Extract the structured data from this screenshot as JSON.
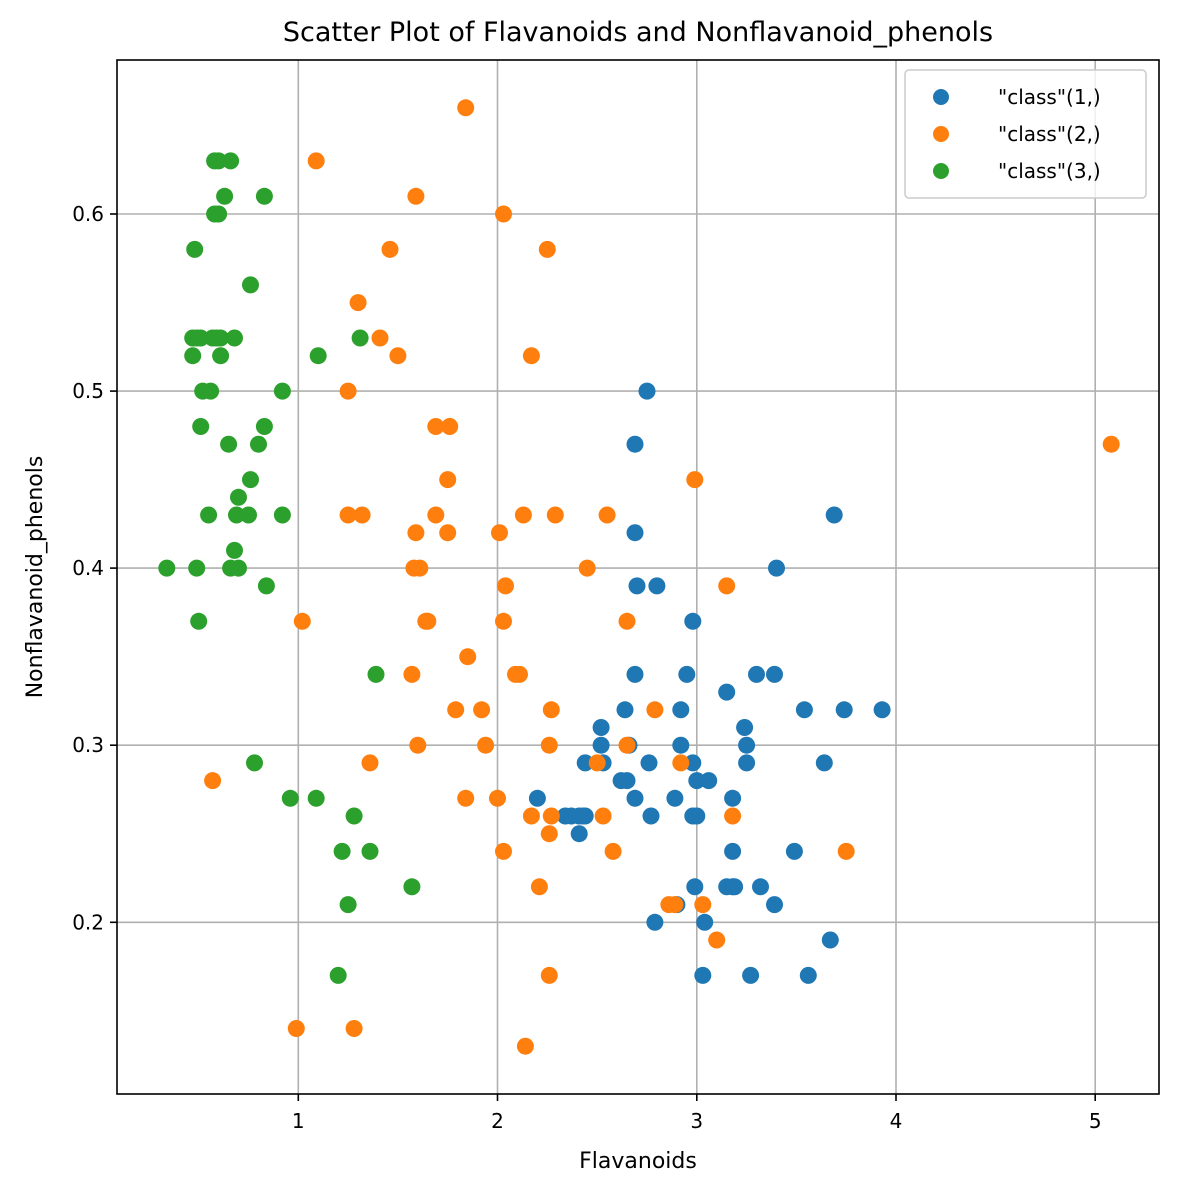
{
  "chart_data": {
    "type": "scatter",
    "title": "Scatter Plot of Flavanoids and Nonflavanoid_phenols",
    "xlabel": "Flavanoids",
    "ylabel": "Nonflavanoid_phenols",
    "xlim": [
      0.09,
      5.32
    ],
    "ylim": [
      0.103,
      0.687
    ],
    "xticks": [
      1,
      2,
      3,
      4,
      5
    ],
    "yticks": [
      0.2,
      0.3,
      0.4,
      0.5,
      0.6
    ],
    "xtick_labels": [
      "1",
      "2",
      "3",
      "4",
      "5"
    ],
    "ytick_labels": [
      "0.2",
      "0.3",
      "0.4",
      "0.5",
      "0.6"
    ],
    "grid": true,
    "legend_position": "top-right",
    "series": [
      {
        "name": "\"class\"(1,)",
        "color": "#1f77b4",
        "points": [
          [
            2.75,
            0.5
          ],
          [
            2.69,
            0.47
          ],
          [
            2.69,
            0.42
          ],
          [
            2.7,
            0.39
          ],
          [
            2.8,
            0.39
          ],
          [
            2.98,
            0.37
          ],
          [
            3.69,
            0.43
          ],
          [
            3.4,
            0.4
          ],
          [
            2.69,
            0.34
          ],
          [
            2.95,
            0.34
          ],
          [
            3.3,
            0.34
          ],
          [
            3.39,
            0.34
          ],
          [
            3.15,
            0.33
          ],
          [
            2.64,
            0.32
          ],
          [
            2.92,
            0.32
          ],
          [
            3.54,
            0.32
          ],
          [
            3.74,
            0.32
          ],
          [
            3.93,
            0.32
          ],
          [
            2.52,
            0.31
          ],
          [
            3.24,
            0.31
          ],
          [
            2.52,
            0.3
          ],
          [
            2.66,
            0.3
          ],
          [
            2.92,
            0.3
          ],
          [
            3.25,
            0.3
          ],
          [
            2.44,
            0.29
          ],
          [
            2.53,
            0.29
          ],
          [
            2.76,
            0.29
          ],
          [
            2.98,
            0.29
          ],
          [
            3.25,
            0.29
          ],
          [
            3.64,
            0.29
          ],
          [
            2.62,
            0.28
          ],
          [
            2.65,
            0.28
          ],
          [
            3.0,
            0.28
          ],
          [
            3.06,
            0.28
          ],
          [
            2.2,
            0.27
          ],
          [
            2.69,
            0.27
          ],
          [
            2.89,
            0.27
          ],
          [
            3.18,
            0.27
          ],
          [
            2.34,
            0.26
          ],
          [
            2.37,
            0.26
          ],
          [
            2.41,
            0.26
          ],
          [
            2.43,
            0.26
          ],
          [
            2.44,
            0.26
          ],
          [
            2.77,
            0.26
          ],
          [
            2.98,
            0.26
          ],
          [
            3.0,
            0.26
          ],
          [
            2.41,
            0.25
          ],
          [
            3.18,
            0.24
          ],
          [
            3.49,
            0.24
          ],
          [
            2.99,
            0.22
          ],
          [
            3.15,
            0.22
          ],
          [
            3.18,
            0.22
          ],
          [
            3.19,
            0.22
          ],
          [
            3.32,
            0.22
          ],
          [
            2.9,
            0.21
          ],
          [
            3.39,
            0.21
          ],
          [
            2.79,
            0.2
          ],
          [
            3.04,
            0.2
          ],
          [
            3.67,
            0.19
          ],
          [
            3.03,
            0.17
          ],
          [
            3.27,
            0.17
          ],
          [
            3.56,
            0.17
          ]
        ]
      },
      {
        "name": "\"class\"(2,)",
        "color": "#ff7f0e",
        "points": [
          [
            1.84,
            0.66
          ],
          [
            1.09,
            0.63
          ],
          [
            1.59,
            0.61
          ],
          [
            2.03,
            0.6
          ],
          [
            1.46,
            0.58
          ],
          [
            2.25,
            0.58
          ],
          [
            1.3,
            0.55
          ],
          [
            1.41,
            0.53
          ],
          [
            1.5,
            0.52
          ],
          [
            2.17,
            0.52
          ],
          [
            1.25,
            0.5
          ],
          [
            1.69,
            0.48
          ],
          [
            1.76,
            0.48
          ],
          [
            5.08,
            0.47
          ],
          [
            1.75,
            0.45
          ],
          [
            2.99,
            0.45
          ],
          [
            1.25,
            0.43
          ],
          [
            1.32,
            0.43
          ],
          [
            1.69,
            0.43
          ],
          [
            2.13,
            0.43
          ],
          [
            2.29,
            0.43
          ],
          [
            2.55,
            0.43
          ],
          [
            1.59,
            0.42
          ],
          [
            1.75,
            0.42
          ],
          [
            2.01,
            0.42
          ],
          [
            1.58,
            0.4
          ],
          [
            1.61,
            0.4
          ],
          [
            2.45,
            0.4
          ],
          [
            2.04,
            0.39
          ],
          [
            3.15,
            0.39
          ],
          [
            1.02,
            0.37
          ],
          [
            1.64,
            0.37
          ],
          [
            1.65,
            0.37
          ],
          [
            2.03,
            0.37
          ],
          [
            2.65,
            0.37
          ],
          [
            1.85,
            0.35
          ],
          [
            1.57,
            0.34
          ],
          [
            2.09,
            0.34
          ],
          [
            2.11,
            0.34
          ],
          [
            1.79,
            0.32
          ],
          [
            1.92,
            0.32
          ],
          [
            2.27,
            0.32
          ],
          [
            2.79,
            0.32
          ],
          [
            1.6,
            0.3
          ],
          [
            1.94,
            0.3
          ],
          [
            2.26,
            0.3
          ],
          [
            2.65,
            0.3
          ],
          [
            1.36,
            0.29
          ],
          [
            2.5,
            0.29
          ],
          [
            2.92,
            0.29
          ],
          [
            0.57,
            0.28
          ],
          [
            1.84,
            0.27
          ],
          [
            2.0,
            0.27
          ],
          [
            2.17,
            0.26
          ],
          [
            2.27,
            0.26
          ],
          [
            2.53,
            0.26
          ],
          [
            3.18,
            0.26
          ],
          [
            2.26,
            0.25
          ],
          [
            2.03,
            0.24
          ],
          [
            2.58,
            0.24
          ],
          [
            3.75,
            0.24
          ],
          [
            2.21,
            0.22
          ],
          [
            2.86,
            0.21
          ],
          [
            2.89,
            0.21
          ],
          [
            3.03,
            0.21
          ],
          [
            3.1,
            0.19
          ],
          [
            2.26,
            0.17
          ],
          [
            0.99,
            0.14
          ],
          [
            1.28,
            0.14
          ],
          [
            2.14,
            0.13
          ]
        ]
      },
      {
        "name": "\"class\"(3,)",
        "color": "#2ca02c",
        "points": [
          [
            0.58,
            0.63
          ],
          [
            0.6,
            0.63
          ],
          [
            0.66,
            0.63
          ],
          [
            0.63,
            0.61
          ],
          [
            0.83,
            0.61
          ],
          [
            0.58,
            0.6
          ],
          [
            0.6,
            0.6
          ],
          [
            0.48,
            0.58
          ],
          [
            0.76,
            0.56
          ],
          [
            0.47,
            0.53
          ],
          [
            0.49,
            0.53
          ],
          [
            0.51,
            0.53
          ],
          [
            0.57,
            0.53
          ],
          [
            0.59,
            0.53
          ],
          [
            0.61,
            0.53
          ],
          [
            0.68,
            0.53
          ],
          [
            1.31,
            0.53
          ],
          [
            0.47,
            0.52
          ],
          [
            0.61,
            0.52
          ],
          [
            1.1,
            0.52
          ],
          [
            0.52,
            0.5
          ],
          [
            0.56,
            0.5
          ],
          [
            0.92,
            0.5
          ],
          [
            0.51,
            0.48
          ],
          [
            0.83,
            0.48
          ],
          [
            0.65,
            0.47
          ],
          [
            0.8,
            0.47
          ],
          [
            0.76,
            0.45
          ],
          [
            0.7,
            0.44
          ],
          [
            0.55,
            0.43
          ],
          [
            0.69,
            0.43
          ],
          [
            0.75,
            0.43
          ],
          [
            0.92,
            0.43
          ],
          [
            0.68,
            0.41
          ],
          [
            0.34,
            0.4
          ],
          [
            0.49,
            0.4
          ],
          [
            0.66,
            0.4
          ],
          [
            0.7,
            0.4
          ],
          [
            0.84,
            0.39
          ],
          [
            0.5,
            0.37
          ],
          [
            1.39,
            0.34
          ],
          [
            0.78,
            0.29
          ],
          [
            0.96,
            0.27
          ],
          [
            1.09,
            0.27
          ],
          [
            1.28,
            0.26
          ],
          [
            1.22,
            0.24
          ],
          [
            1.36,
            0.24
          ],
          [
            1.57,
            0.22
          ],
          [
            1.25,
            0.21
          ],
          [
            1.2,
            0.17
          ]
        ]
      }
    ]
  }
}
